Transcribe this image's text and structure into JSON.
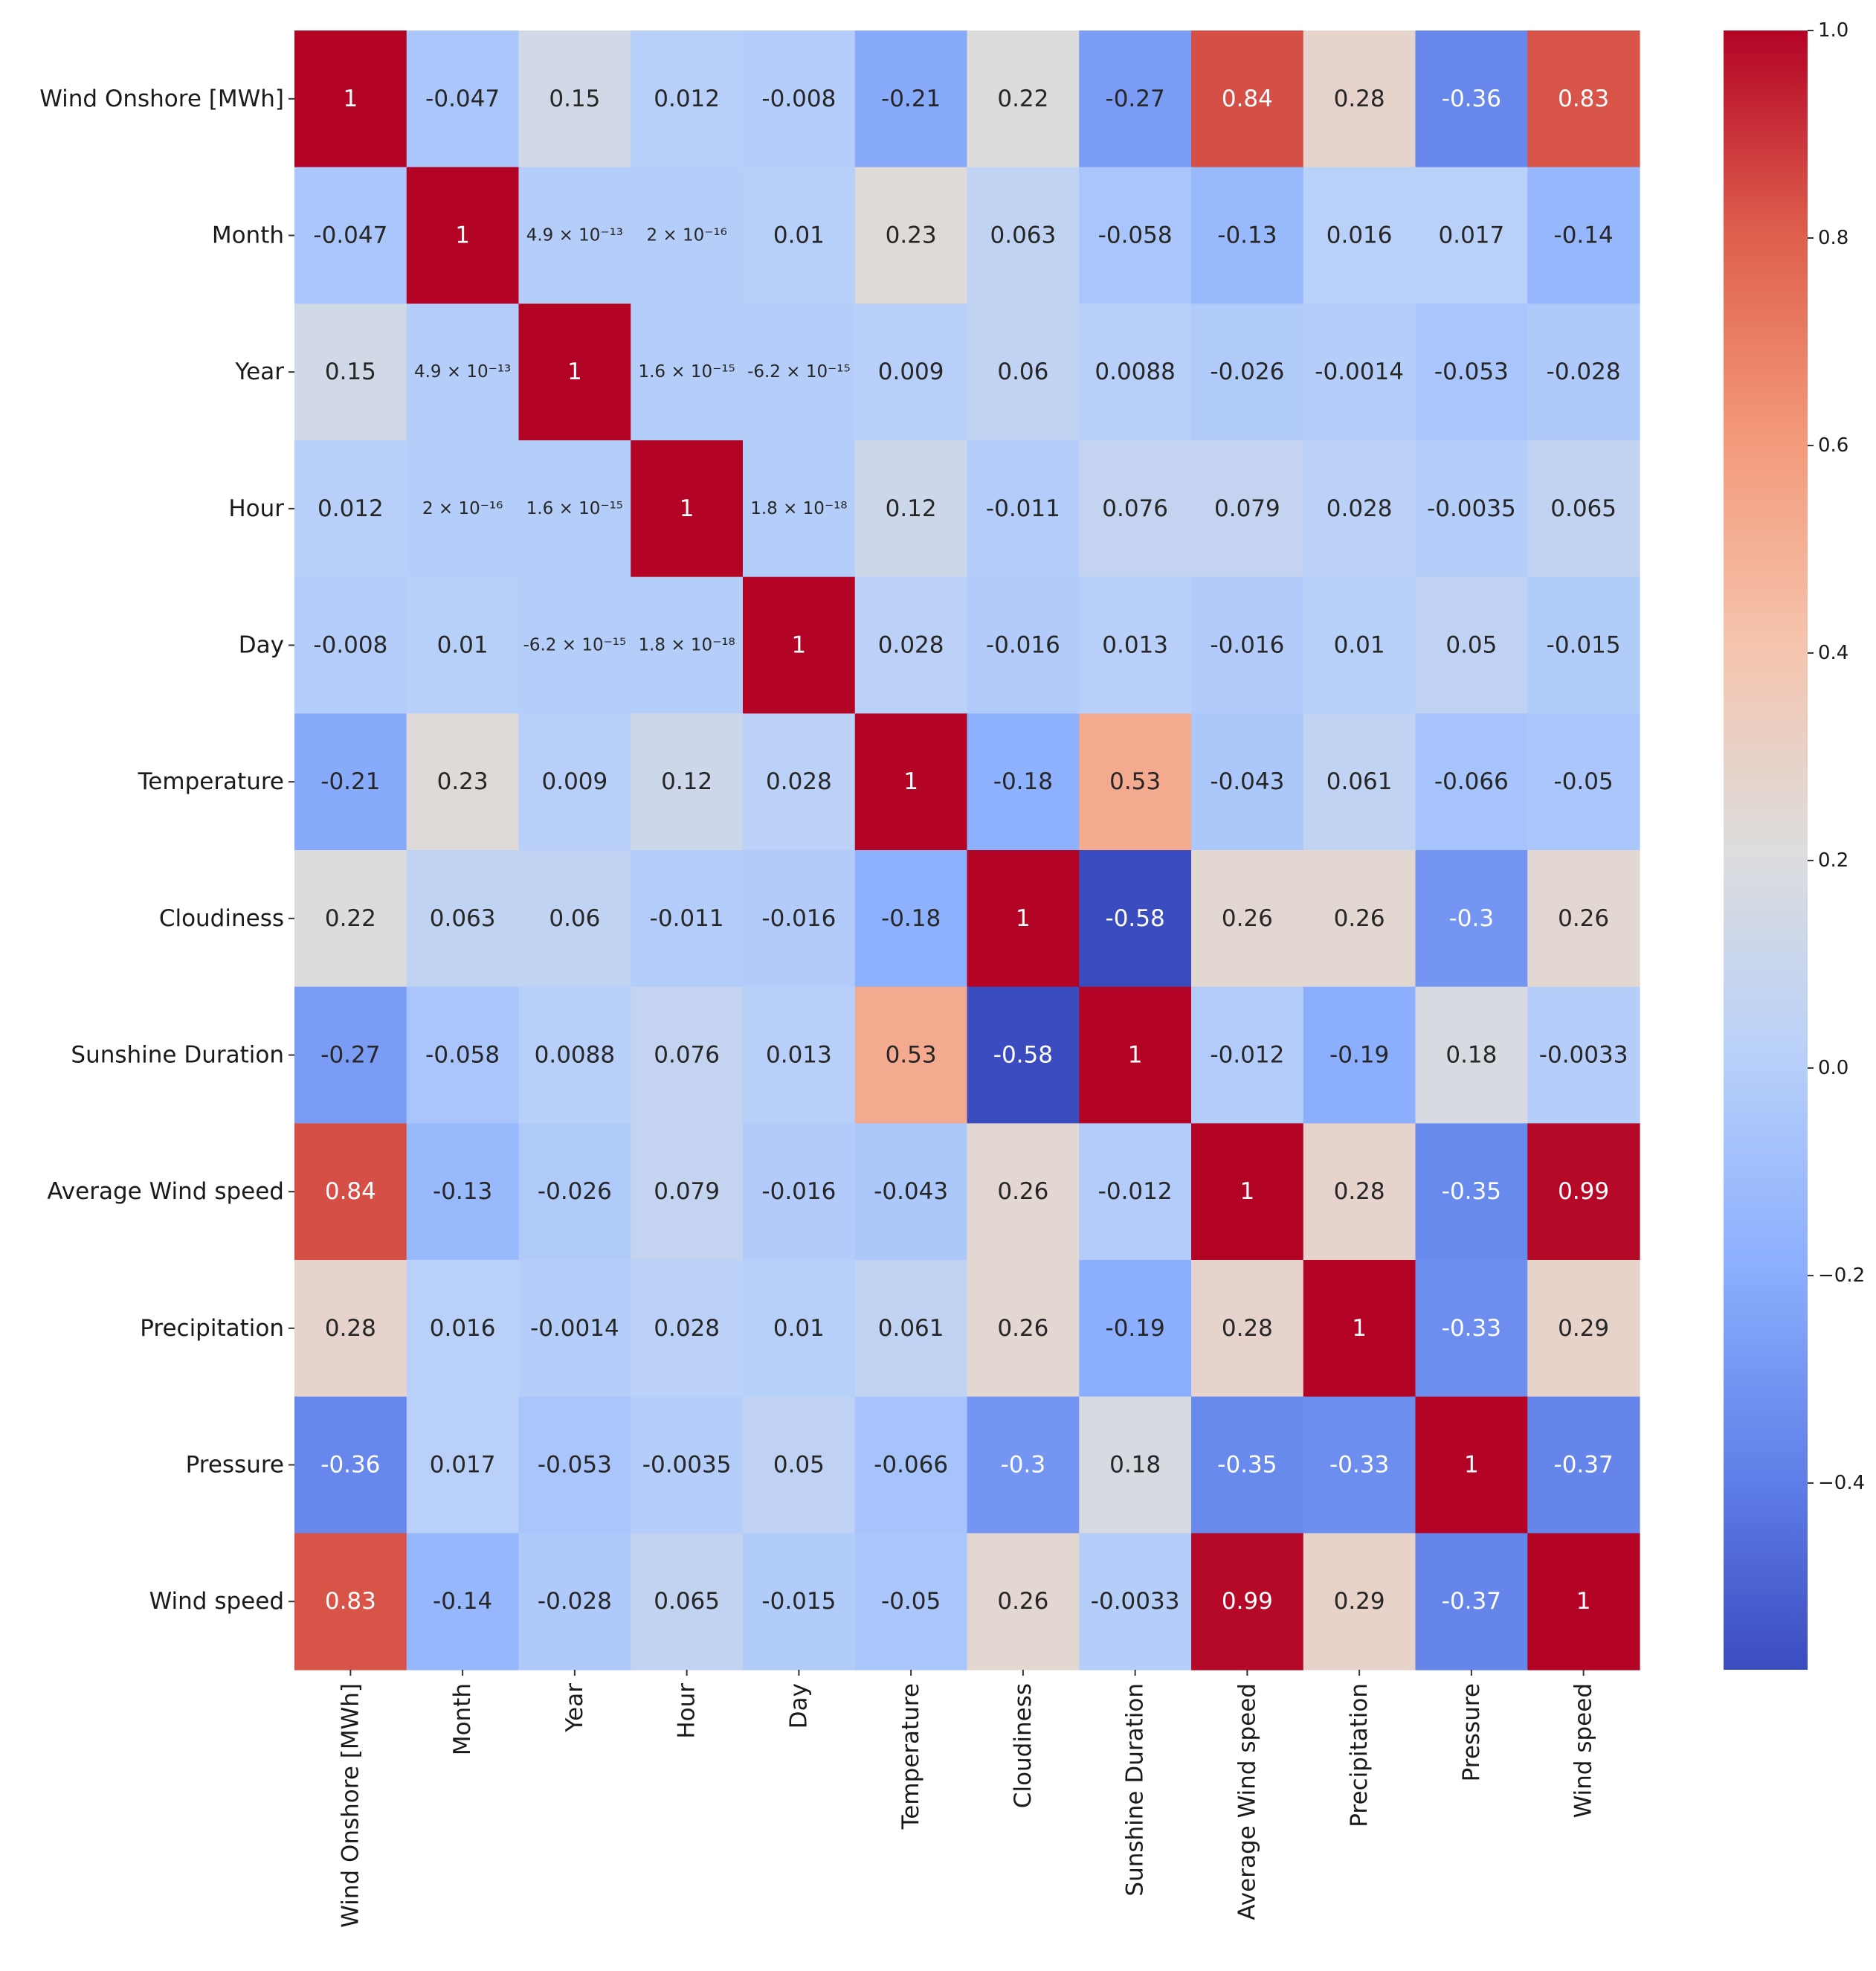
{
  "chart_data": {
    "type": "heatmap",
    "title": "",
    "colormap": "coolwarm",
    "value_range": [
      -0.58,
      1.0
    ],
    "rows": [
      "Wind Onshore [MWh]",
      "Month",
      "Year",
      "Hour",
      "Day",
      "Temperature",
      "Cloudiness",
      "Sunshine Duration",
      "Average Wind speed",
      "Precipitation",
      "Pressure",
      "Wind speed"
    ],
    "columns": [
      "Wind Onshore [MWh]",
      "Month",
      "Year",
      "Hour",
      "Day",
      "Temperature",
      "Cloudiness",
      "Sunshine Duration",
      "Average Wind speed",
      "Precipitation",
      "Pressure",
      "Wind speed"
    ],
    "values": [
      [
        1,
        -0.047,
        0.15,
        0.012,
        -0.008,
        -0.21,
        0.22,
        -0.27,
        0.84,
        0.28,
        -0.36,
        0.83
      ],
      [
        -0.047,
        1,
        4.9e-13,
        2e-16,
        0.01,
        0.23,
        0.063,
        -0.058,
        -0.13,
        0.016,
        0.017,
        -0.14
      ],
      [
        0.15,
        4.9e-13,
        1,
        1.6e-15,
        -6.2e-15,
        0.009,
        0.06,
        0.0088,
        -0.026,
        -0.0014,
        -0.053,
        -0.028
      ],
      [
        0.012,
        2e-16,
        1.6e-15,
        1,
        1.8e-18,
        0.12,
        -0.011,
        0.076,
        0.079,
        0.028,
        -0.0035,
        0.065
      ],
      [
        -0.008,
        0.01,
        -6.2e-15,
        1.8e-18,
        1,
        0.028,
        -0.016,
        0.013,
        -0.016,
        0.01,
        0.05,
        -0.015
      ],
      [
        -0.21,
        0.23,
        0.009,
        0.12,
        0.028,
        1,
        -0.18,
        0.53,
        -0.043,
        0.061,
        -0.066,
        -0.05
      ],
      [
        0.22,
        0.063,
        0.06,
        -0.011,
        -0.016,
        -0.18,
        1,
        -0.58,
        0.26,
        0.26,
        -0.3,
        0.26
      ],
      [
        -0.27,
        -0.058,
        0.0088,
        0.076,
        0.013,
        0.53,
        -0.58,
        1,
        -0.012,
        -0.19,
        0.18,
        -0.0033
      ],
      [
        0.84,
        -0.13,
        -0.026,
        0.079,
        -0.016,
        -0.043,
        0.26,
        -0.012,
        1,
        0.28,
        -0.35,
        0.99
      ],
      [
        0.28,
        0.016,
        -0.0014,
        0.028,
        0.01,
        0.061,
        0.26,
        -0.19,
        0.28,
        1,
        -0.33,
        0.29
      ],
      [
        -0.36,
        0.017,
        -0.053,
        -0.0035,
        0.05,
        -0.066,
        -0.3,
        0.18,
        -0.35,
        -0.33,
        1,
        -0.37
      ],
      [
        0.83,
        -0.14,
        -0.028,
        0.065,
        -0.015,
        -0.05,
        0.26,
        -0.0033,
        0.99,
        0.29,
        -0.37,
        1
      ]
    ],
    "annotations": [
      [
        "1",
        "-0.047",
        "0.15",
        "0.012",
        "-0.008",
        "-0.21",
        "0.22",
        "-0.27",
        "0.84",
        "0.28",
        "-0.36",
        "0.83"
      ],
      [
        "-0.047",
        "1",
        "4.9 × 10⁻¹³",
        "2 × 10⁻¹⁶",
        "0.01",
        "0.23",
        "0.063",
        "-0.058",
        "-0.13",
        "0.016",
        "0.017",
        "-0.14"
      ],
      [
        "0.15",
        "4.9 × 10⁻¹³",
        "1",
        "1.6 × 10⁻¹⁵",
        "-6.2 × 10⁻¹⁵",
        "0.009",
        "0.06",
        "0.0088",
        "-0.026",
        "-0.0014",
        "-0.053",
        "-0.028"
      ],
      [
        "0.012",
        "2 × 10⁻¹⁶",
        "1.6 × 10⁻¹⁵",
        "1",
        "1.8 × 10⁻¹⁸",
        "0.12",
        "-0.011",
        "0.076",
        "0.079",
        "0.028",
        "-0.0035",
        "0.065"
      ],
      [
        "-0.008",
        "0.01",
        "-6.2 × 10⁻¹⁵",
        "1.8 × 10⁻¹⁸",
        "1",
        "0.028",
        "-0.016",
        "0.013",
        "-0.016",
        "0.01",
        "0.05",
        "-0.015"
      ],
      [
        "-0.21",
        "0.23",
        "0.009",
        "0.12",
        "0.028",
        "1",
        "-0.18",
        "0.53",
        "-0.043",
        "0.061",
        "-0.066",
        "-0.05"
      ],
      [
        "0.22",
        "0.063",
        "0.06",
        "-0.011",
        "-0.016",
        "-0.18",
        "1",
        "-0.58",
        "0.26",
        "0.26",
        "-0.3",
        "0.26"
      ],
      [
        "-0.27",
        "-0.058",
        "0.0088",
        "0.076",
        "0.013",
        "0.53",
        "-0.58",
        "1",
        "-0.012",
        "-0.19",
        "0.18",
        "-0.0033"
      ],
      [
        "0.84",
        "-0.13",
        "-0.026",
        "0.079",
        "-0.016",
        "-0.043",
        "0.26",
        "-0.012",
        "1",
        "0.28",
        "-0.35",
        "0.99"
      ],
      [
        "0.28",
        "0.016",
        "-0.0014",
        "0.028",
        "0.01",
        "0.061",
        "0.26",
        "-0.19",
        "0.28",
        "1",
        "-0.33",
        "0.29"
      ],
      [
        "-0.36",
        "0.017",
        "-0.053",
        "-0.0035",
        "0.05",
        "-0.066",
        "-0.3",
        "0.18",
        "-0.35",
        "-0.33",
        "1",
        "-0.37"
      ],
      [
        "0.83",
        "-0.14",
        "-0.028",
        "0.065",
        "-0.015",
        "-0.05",
        "0.26",
        "-0.0033",
        "0.99",
        "0.29",
        "-0.37",
        "1"
      ]
    ],
    "colorbar": {
      "ticks": [
        1.0,
        0.8,
        0.6,
        0.4,
        0.2,
        0.0,
        -0.2,
        -0.4
      ],
      "tick_labels": [
        "1.0",
        "0.8",
        "0.6",
        "0.4",
        "0.2",
        "0.0",
        "−0.2",
        "−0.4"
      ],
      "range": [
        -0.58,
        1.0
      ]
    }
  }
}
